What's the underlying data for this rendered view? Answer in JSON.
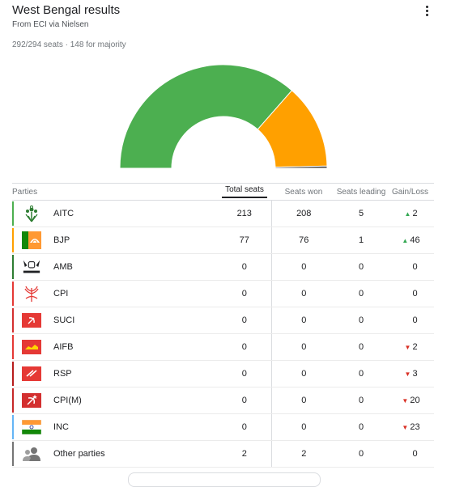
{
  "header": {
    "title": "West Bengal results",
    "source": "From ECI via Nielsen",
    "seat_info": "292/294 seats · 148 for majority",
    "menu_icon": "more-vert-icon"
  },
  "chart_data": {
    "type": "pie",
    "variant": "semi-donut",
    "categories": [
      "AITC",
      "BJP",
      "Other parties"
    ],
    "values": [
      213,
      77,
      2
    ],
    "colors": [
      "#4caf50",
      "#ffa000",
      "#424242"
    ]
  },
  "table": {
    "headers": {
      "parties": "Parties",
      "total": "Total seats",
      "won": "Seats won",
      "leading": "Seats leading",
      "gain": "Gain/Loss"
    },
    "rows": [
      {
        "party": "AITC",
        "total": "213",
        "won": "208",
        "leading": "5",
        "gain": "2",
        "trend": "up",
        "color": "#4caf50",
        "icon": "aitc-flower-grass-logo"
      },
      {
        "party": "BJP",
        "total": "77",
        "won": "76",
        "leading": "1",
        "gain": "46",
        "trend": "up",
        "color": "#ffa000",
        "icon": "bjp-lotus-flag"
      },
      {
        "party": "AMB",
        "total": "0",
        "won": "0",
        "leading": "0",
        "gain": "0",
        "trend": "none",
        "color": "#2e7d32",
        "icon": "amb-symbol"
      },
      {
        "party": "CPI",
        "total": "0",
        "won": "0",
        "leading": "0",
        "gain": "0",
        "trend": "none",
        "color": "#e53935",
        "icon": "cpi-ears-sickle-logo"
      },
      {
        "party": "SUCI",
        "total": "0",
        "won": "0",
        "leading": "0",
        "gain": "0",
        "trend": "none",
        "color": "#d32f2f",
        "icon": "suci-red-flag"
      },
      {
        "party": "AIFB",
        "total": "0",
        "won": "0",
        "leading": "0",
        "gain": "2",
        "trend": "down",
        "color": "#e53935",
        "icon": "aifb-red-flag"
      },
      {
        "party": "RSP",
        "total": "0",
        "won": "0",
        "leading": "0",
        "gain": "3",
        "trend": "down",
        "color": "#b71c1c",
        "icon": "rsp-red-flag"
      },
      {
        "party": "CPI(M)",
        "total": "0",
        "won": "0",
        "leading": "0",
        "gain": "20",
        "trend": "down",
        "color": "#c62828",
        "icon": "cpim-red-flag"
      },
      {
        "party": "INC",
        "total": "0",
        "won": "0",
        "leading": "0",
        "gain": "23",
        "trend": "down",
        "color": "#64b5f6",
        "icon": "inc-tricolor-flag"
      },
      {
        "party": "Other parties",
        "total": "2",
        "won": "2",
        "leading": "0",
        "gain": "0",
        "trend": "none",
        "color": "#757575",
        "icon": "group-people-icon"
      }
    ]
  }
}
